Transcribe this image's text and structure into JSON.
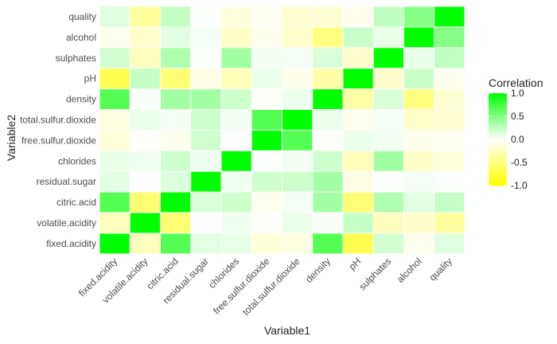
{
  "chart_data": {
    "type": "heatmap",
    "xlabel": "Variable1",
    "ylabel": "Variable2",
    "variables": [
      "fixed.acidity",
      "volatile.acidity",
      "citric.acid",
      "residual.sugar",
      "chlorides",
      "free.sulfur.dioxide",
      "total.sulfur.dioxide",
      "density",
      "pH",
      "sulphates",
      "alcohol",
      "quality"
    ],
    "matrix": [
      [
        1.0,
        -0.26,
        0.67,
        0.11,
        0.09,
        -0.15,
        -0.11,
        0.67,
        -0.68,
        0.18,
        -0.06,
        0.12
      ],
      [
        -0.26,
        1.0,
        -0.55,
        0.0,
        0.06,
        -0.01,
        0.08,
        0.02,
        0.23,
        -0.26,
        -0.2,
        -0.39
      ],
      [
        0.67,
        -0.55,
        1.0,
        0.14,
        0.2,
        -0.06,
        0.04,
        0.36,
        -0.54,
        0.31,
        0.11,
        0.23
      ],
      [
        0.11,
        0.0,
        0.14,
        1.0,
        0.06,
        0.19,
        0.2,
        0.36,
        -0.09,
        0.01,
        0.04,
        0.01
      ],
      [
        0.09,
        0.06,
        0.2,
        0.06,
        1.0,
        0.01,
        0.05,
        0.2,
        -0.27,
        0.37,
        -0.22,
        -0.13
      ],
      [
        -0.15,
        -0.01,
        -0.06,
        0.19,
        0.01,
        1.0,
        0.67,
        -0.02,
        0.07,
        0.05,
        -0.07,
        -0.05
      ],
      [
        -0.11,
        0.08,
        0.04,
        0.2,
        0.05,
        0.67,
        1.0,
        0.07,
        -0.07,
        0.04,
        -0.21,
        -0.19
      ],
      [
        0.67,
        0.02,
        0.36,
        0.36,
        0.2,
        -0.02,
        0.07,
        1.0,
        -0.34,
        0.15,
        -0.5,
        -0.17
      ],
      [
        -0.68,
        0.23,
        -0.54,
        -0.09,
        -0.27,
        0.07,
        -0.07,
        -0.34,
        1.0,
        -0.2,
        0.21,
        -0.06
      ],
      [
        0.18,
        -0.26,
        0.31,
        0.01,
        0.37,
        0.05,
        0.04,
        0.15,
        -0.2,
        1.0,
        0.09,
        0.25
      ],
      [
        -0.06,
        -0.2,
        0.11,
        0.04,
        -0.22,
        -0.07,
        -0.21,
        -0.5,
        0.21,
        0.09,
        1.0,
        0.48
      ],
      [
        0.12,
        -0.39,
        0.23,
        0.01,
        -0.13,
        -0.05,
        -0.19,
        -0.17,
        -0.06,
        0.25,
        0.48,
        1.0
      ]
    ],
    "scale": {
      "min": -1.0,
      "max": 1.0,
      "low_color": "#ffff00",
      "mid_color": "#ffffff",
      "high_color": "#00ff00"
    },
    "legend": {
      "title": "Correlation",
      "position": "right",
      "ticks": [
        1.0,
        0.5,
        0.0,
        -0.5,
        -1.0
      ],
      "tick_labels": [
        "1.0",
        "0.5",
        "0.0",
        "-0.5",
        "-1.0"
      ]
    },
    "grid": false
  }
}
